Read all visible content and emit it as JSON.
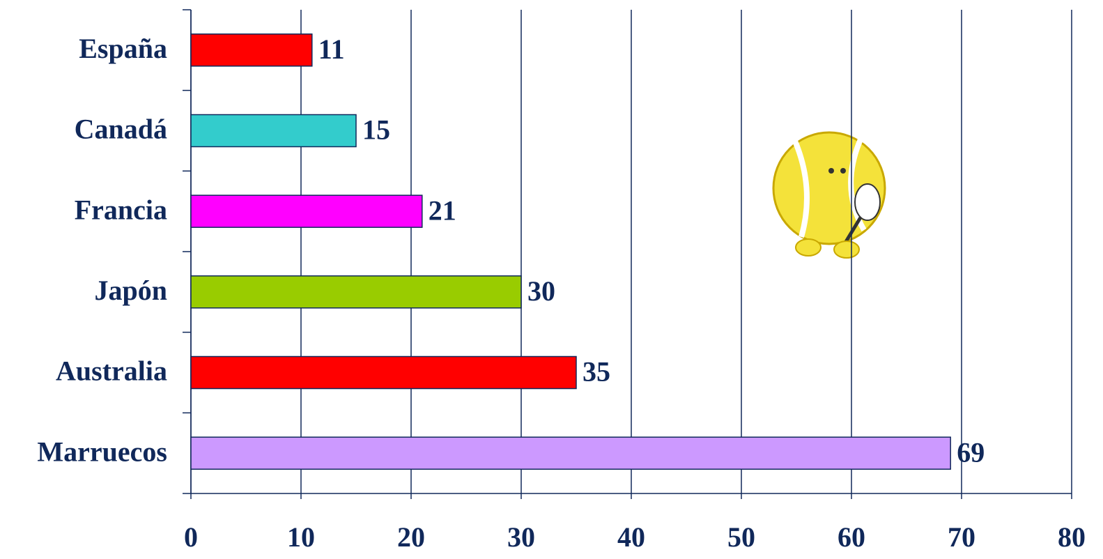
{
  "chart_data": {
    "type": "bar",
    "orientation": "horizontal",
    "categories": [
      "España",
      "Canadá",
      "Francia",
      "Japón",
      "Australia",
      "Marruecos"
    ],
    "values": [
      11,
      15,
      21,
      30,
      35,
      69
    ],
    "colors": [
      "#ff0000",
      "#33cccc",
      "#ff00ff",
      "#99cc00",
      "#ff0000",
      "#cc99ff"
    ],
    "xlim": [
      0,
      80
    ],
    "xticks": [
      0,
      10,
      20,
      30,
      40,
      50,
      60,
      70,
      80
    ],
    "grid": true
  }
}
